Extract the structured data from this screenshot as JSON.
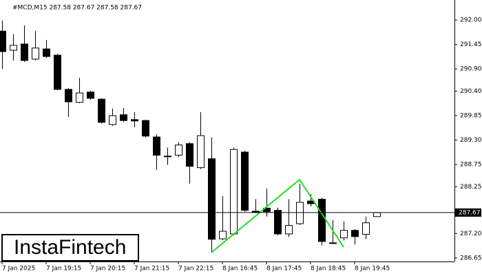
{
  "chart_data": {
    "type": "candlestick",
    "title": "#MCD,M15  287.58 287.67 287.58 287.67",
    "categories": [
      "7 Jan 2025",
      null,
      null,
      null,
      "7 Jan 19:15",
      null,
      null,
      null,
      "7 Jan 20:15",
      null,
      null,
      null,
      "7 Jan 21:15",
      null,
      null,
      null,
      "7 Jan 22:15",
      null,
      null,
      null,
      "8 Jan 16:45",
      null,
      null,
      null,
      "8 Jan 17:45",
      null,
      null,
      null,
      "8 Jan 18:45",
      null,
      null,
      null,
      "8 Jan 19:45",
      null,
      null
    ],
    "open": [
      291.75,
      291.32,
      291.46,
      291.12,
      291.35,
      291.21,
      290.44,
      290.15,
      290.38,
      290.22,
      289.65,
      289.87,
      289.76,
      289.74,
      289.37,
      288.94,
      288.96,
      289.22,
      288.68,
      288.88,
      287.08,
      287.19,
      289.03,
      287.7,
      287.77,
      287.72,
      287.19,
      287.42,
      287.93,
      287.97,
      286.99,
      287.1,
      287.27,
      287.18,
      287.58
    ],
    "high": [
      291.99,
      291.68,
      291.88,
      291.75,
      291.55,
      291.24,
      290.47,
      290.7,
      290.41,
      290.24,
      290.01,
      290.02,
      289.93,
      289.76,
      289.43,
      289.13,
      289.25,
      289.25,
      289.93,
      289.36,
      288.04,
      289.13,
      289.06,
      287.97,
      288.21,
      287.78,
      287.97,
      288.32,
      288.09,
      288.0,
      287.5,
      287.47,
      287.3,
      287.58,
      287.67
    ],
    "low": [
      290.9,
      291.09,
      291.06,
      291.09,
      291.15,
      290.42,
      289.82,
      290.13,
      290.21,
      289.67,
      289.62,
      289.71,
      289.59,
      289.36,
      288.63,
      288.74,
      288.92,
      288.32,
      288.65,
      286.79,
      287.05,
      287.16,
      287.69,
      287.66,
      287.58,
      287.16,
      287.12,
      287.39,
      287.81,
      286.93,
      286.96,
      287.04,
      286.95,
      287.07,
      287.58
    ],
    "close": [
      291.29,
      291.43,
      291.09,
      291.37,
      291.18,
      290.44,
      290.16,
      290.36,
      290.24,
      289.7,
      289.85,
      289.74,
      289.73,
      289.39,
      288.96,
      288.93,
      289.19,
      288.71,
      289.4,
      287.07,
      287.25,
      289.09,
      287.72,
      287.69,
      287.69,
      287.19,
      287.38,
      287.9,
      287.87,
      287.02,
      286.99,
      287.27,
      287.13,
      287.44,
      287.67
    ],
    "up_color": "#ffffff",
    "down_color": "#000000",
    "ylim": [
      286.57,
      292.45
    ],
    "yticks": [
      {
        "value": 292,
        "label": "292.00"
      },
      291.45,
      {
        "value": 290.9,
        "label": "290.90"
      },
      {
        "value": 290.4,
        "label": "290.40"
      },
      289.85,
      {
        "value": 289.3,
        "label": "289.30"
      },
      288.75,
      288.25,
      {
        "value": 287.2,
        "label": "287.20"
      },
      286.65
    ],
    "last_price": 287.67,
    "watermark": "InstaFintech"
  }
}
